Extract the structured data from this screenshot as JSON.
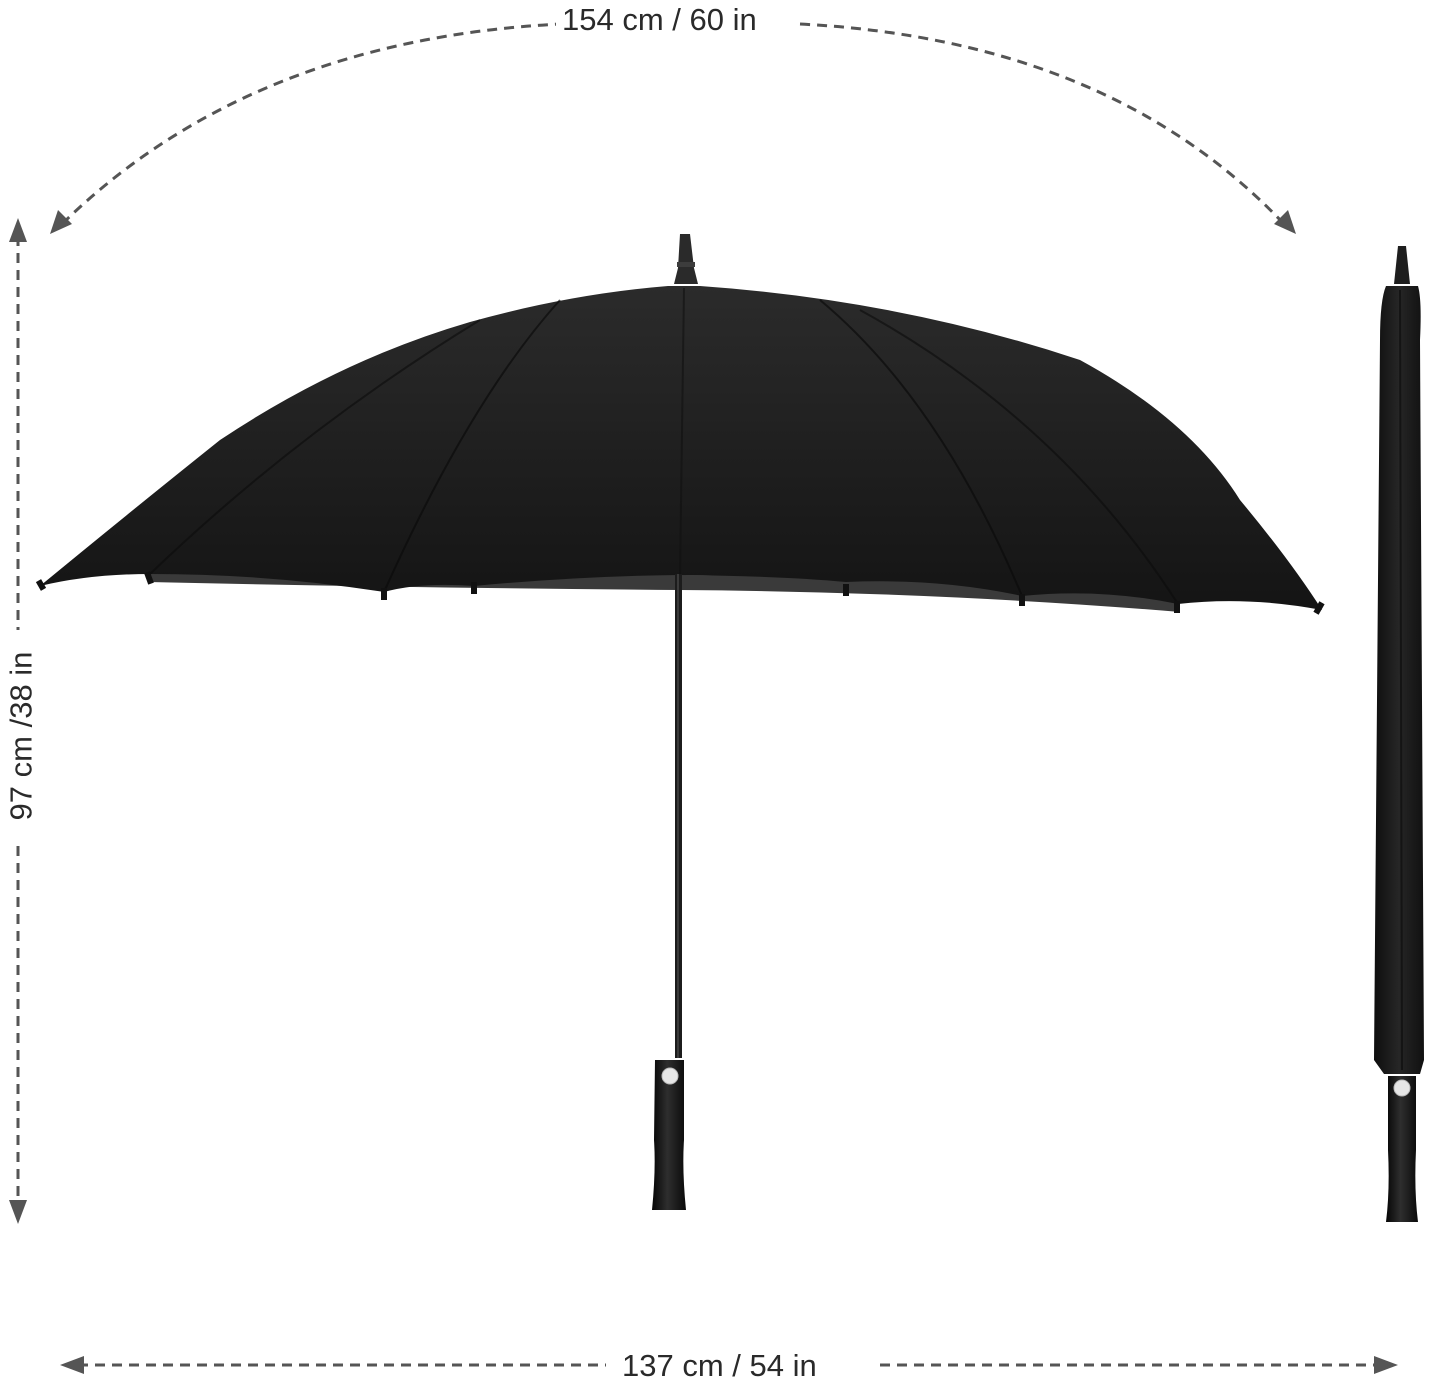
{
  "image": {
    "subject": "umbrella-dimensions"
  },
  "dimensions": {
    "canopy_arc": "154 cm / 60 in",
    "open_height": "97 cm /38 in",
    "open_width": "137 cm / 54 in"
  },
  "colors": {
    "canopy": "#1f1f1f",
    "shaft": "#222222",
    "handle": "#1a1a1a",
    "button": "#e6e6e6",
    "arrow": "#555555",
    "background": "#ffffff"
  }
}
